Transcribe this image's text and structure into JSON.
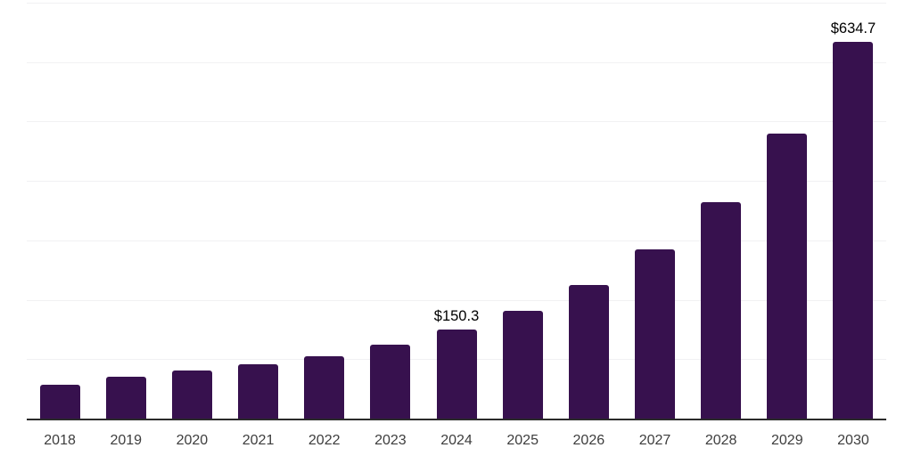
{
  "page": {
    "background_color": "#ffffff"
  },
  "chart_data": {
    "type": "bar",
    "title": "",
    "xlabel": "",
    "ylabel": "",
    "categories": [
      "2018",
      "2019",
      "2020",
      "2021",
      "2022",
      "2023",
      "2024",
      "2025",
      "2026",
      "2027",
      "2028",
      "2029",
      "2030"
    ],
    "values": [
      57,
      70.5,
      81,
      92,
      105.5,
      125,
      150.3,
      182,
      225.5,
      285.5,
      365,
      479,
      634.7
    ],
    "data_labels": [
      "",
      "",
      "",
      "",
      "",
      "",
      "$150.3",
      "",
      "",
      "",
      "",
      "",
      "$634.7"
    ],
    "ylim": [
      0,
      700
    ],
    "grid_step": 100,
    "grid": true,
    "legend": false,
    "bar_color": "#37114e",
    "gridline_color": "#f1f1f3",
    "axis_line_color": "#2b2b2b",
    "tick_label_color": "#3d3d3d",
    "value_label_color": "#000000"
  }
}
